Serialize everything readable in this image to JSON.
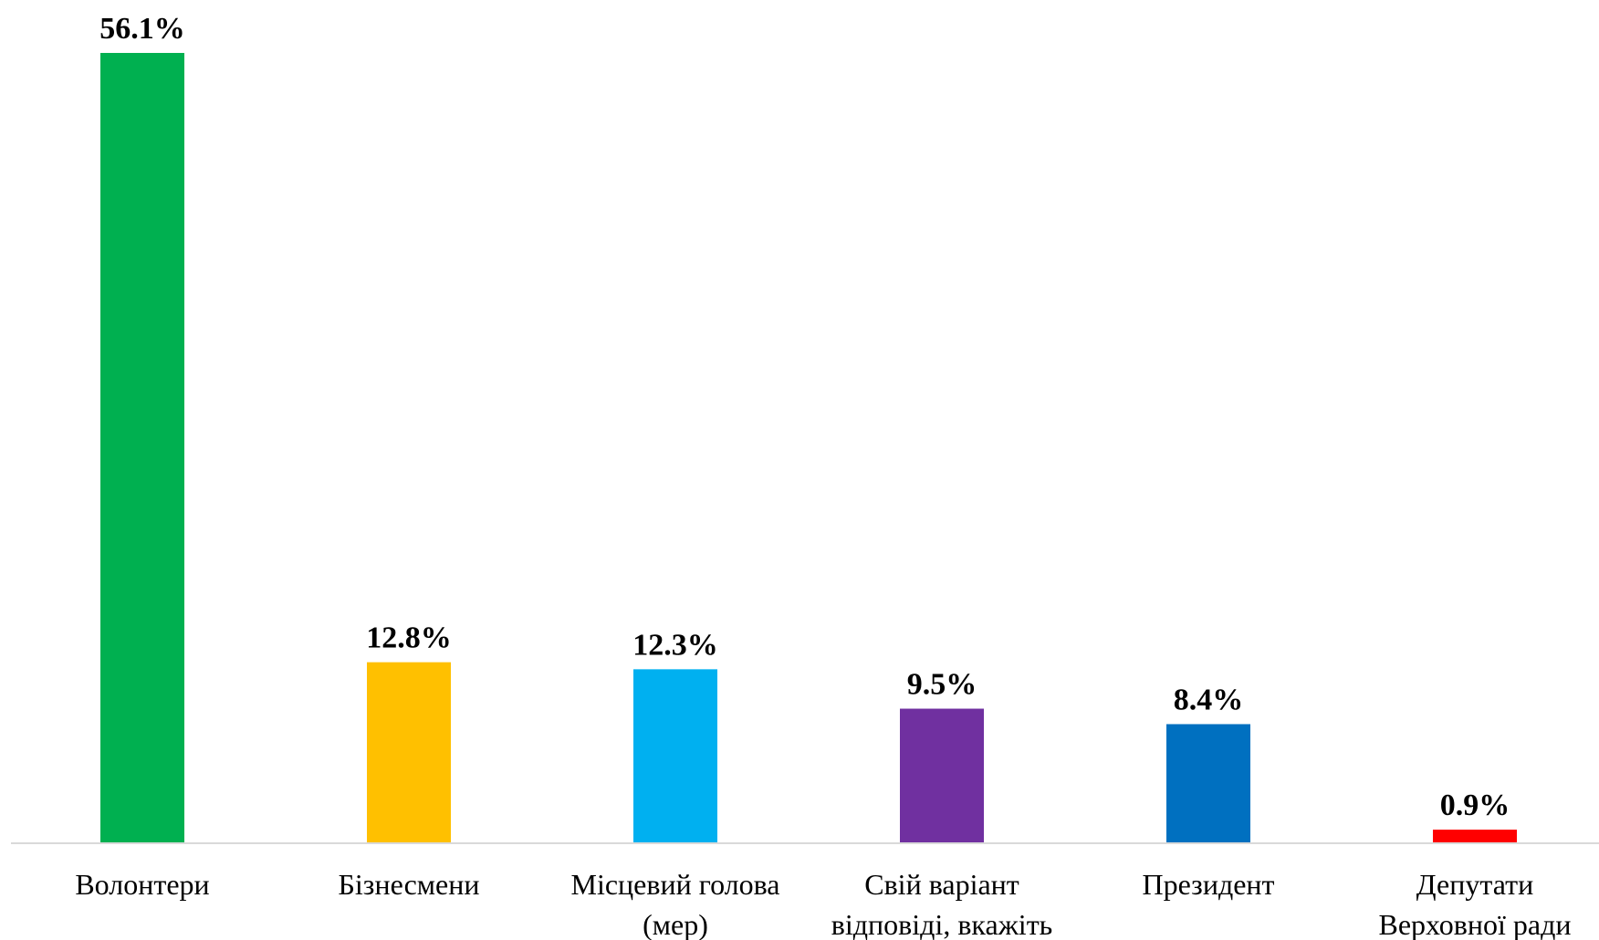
{
  "chart_data": {
    "type": "bar",
    "title": "",
    "xlabel": "",
    "ylabel": "",
    "ylim": [
      0,
      56.1
    ],
    "grid": false,
    "legend": "none",
    "categories": [
      "Волонтери",
      "Бізнесмени",
      "Місцевий голова (мер)",
      "Свій варіант відповіді, вкажіть",
      "Президент",
      "Депутати Верховної ради"
    ],
    "category_lines": [
      [
        "Волонтери"
      ],
      [
        "Бізнесмени"
      ],
      [
        "Місцевий голова",
        "(мер)"
      ],
      [
        "Свій варіант",
        "відповіді, вкажіть"
      ],
      [
        "Президент"
      ],
      [
        "Депутати",
        "Верховної ради"
      ]
    ],
    "values": [
      56.1,
      12.8,
      12.3,
      9.5,
      8.4,
      0.9
    ],
    "data_labels": [
      "56.1%",
      "12.8%",
      "12.3%",
      "9.5%",
      "8.4%",
      "0.9%"
    ],
    "colors": [
      "#00b050",
      "#ffc000",
      "#00b0f0",
      "#7030a0",
      "#0070c0",
      "#ff0000"
    ],
    "axis_color": "#d9d9d9"
  }
}
